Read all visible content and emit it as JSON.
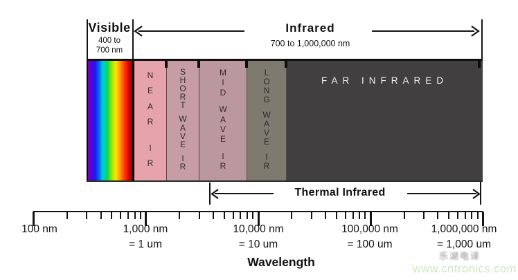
{
  "header": {
    "visible_title": "Visible",
    "visible_range_line1": "400 to",
    "visible_range_line2": "700 nm",
    "infrared_title": "Infrared",
    "infrared_range": "700 to 1,000,000 nm"
  },
  "bands": [
    {
      "name": "visible-spectrum",
      "label": "",
      "fill": "rainbow-gradient"
    },
    {
      "name": "near-ir",
      "label": "NEAR IR",
      "fill": "#e6a3ac"
    },
    {
      "name": "short-wave-ir",
      "label": "SHORT WAVE IR",
      "fill": "#c69da4"
    },
    {
      "name": "mid-wave-ir",
      "label": "MID WAVE IR",
      "fill": "#bb979e"
    },
    {
      "name": "long-wave-ir",
      "label": "LONG WAVE IR",
      "fill": "#7e7a6f"
    },
    {
      "name": "far-infrared",
      "label": "FAR INFRARED",
      "fill": "#423f40",
      "text_color": "#f3efee"
    }
  ],
  "thermal_label": "Thermal Infrared",
  "axis": {
    "scale": "log",
    "axis_label": "Wavelength",
    "ticks": [
      {
        "nm": "100 nm",
        "um": "",
        "value_nm": 100
      },
      {
        "nm": "1,000 nm",
        "um": "= 1 um",
        "value_nm": 1000
      },
      {
        "nm": "10,000 nm",
        "um": "= 10 um",
        "value_nm": 10000
      },
      {
        "nm": "100,000 nm",
        "um": "= 100 um",
        "value_nm": 100000
      },
      {
        "nm": "1,000,000 nm",
        "um": "= 1,000 um",
        "value_nm": 1000000
      }
    ]
  },
  "watermark": {
    "cjk": "乐湖电译",
    "site": "www.cntronics.com",
    "site_color": "#cde9c0"
  }
}
